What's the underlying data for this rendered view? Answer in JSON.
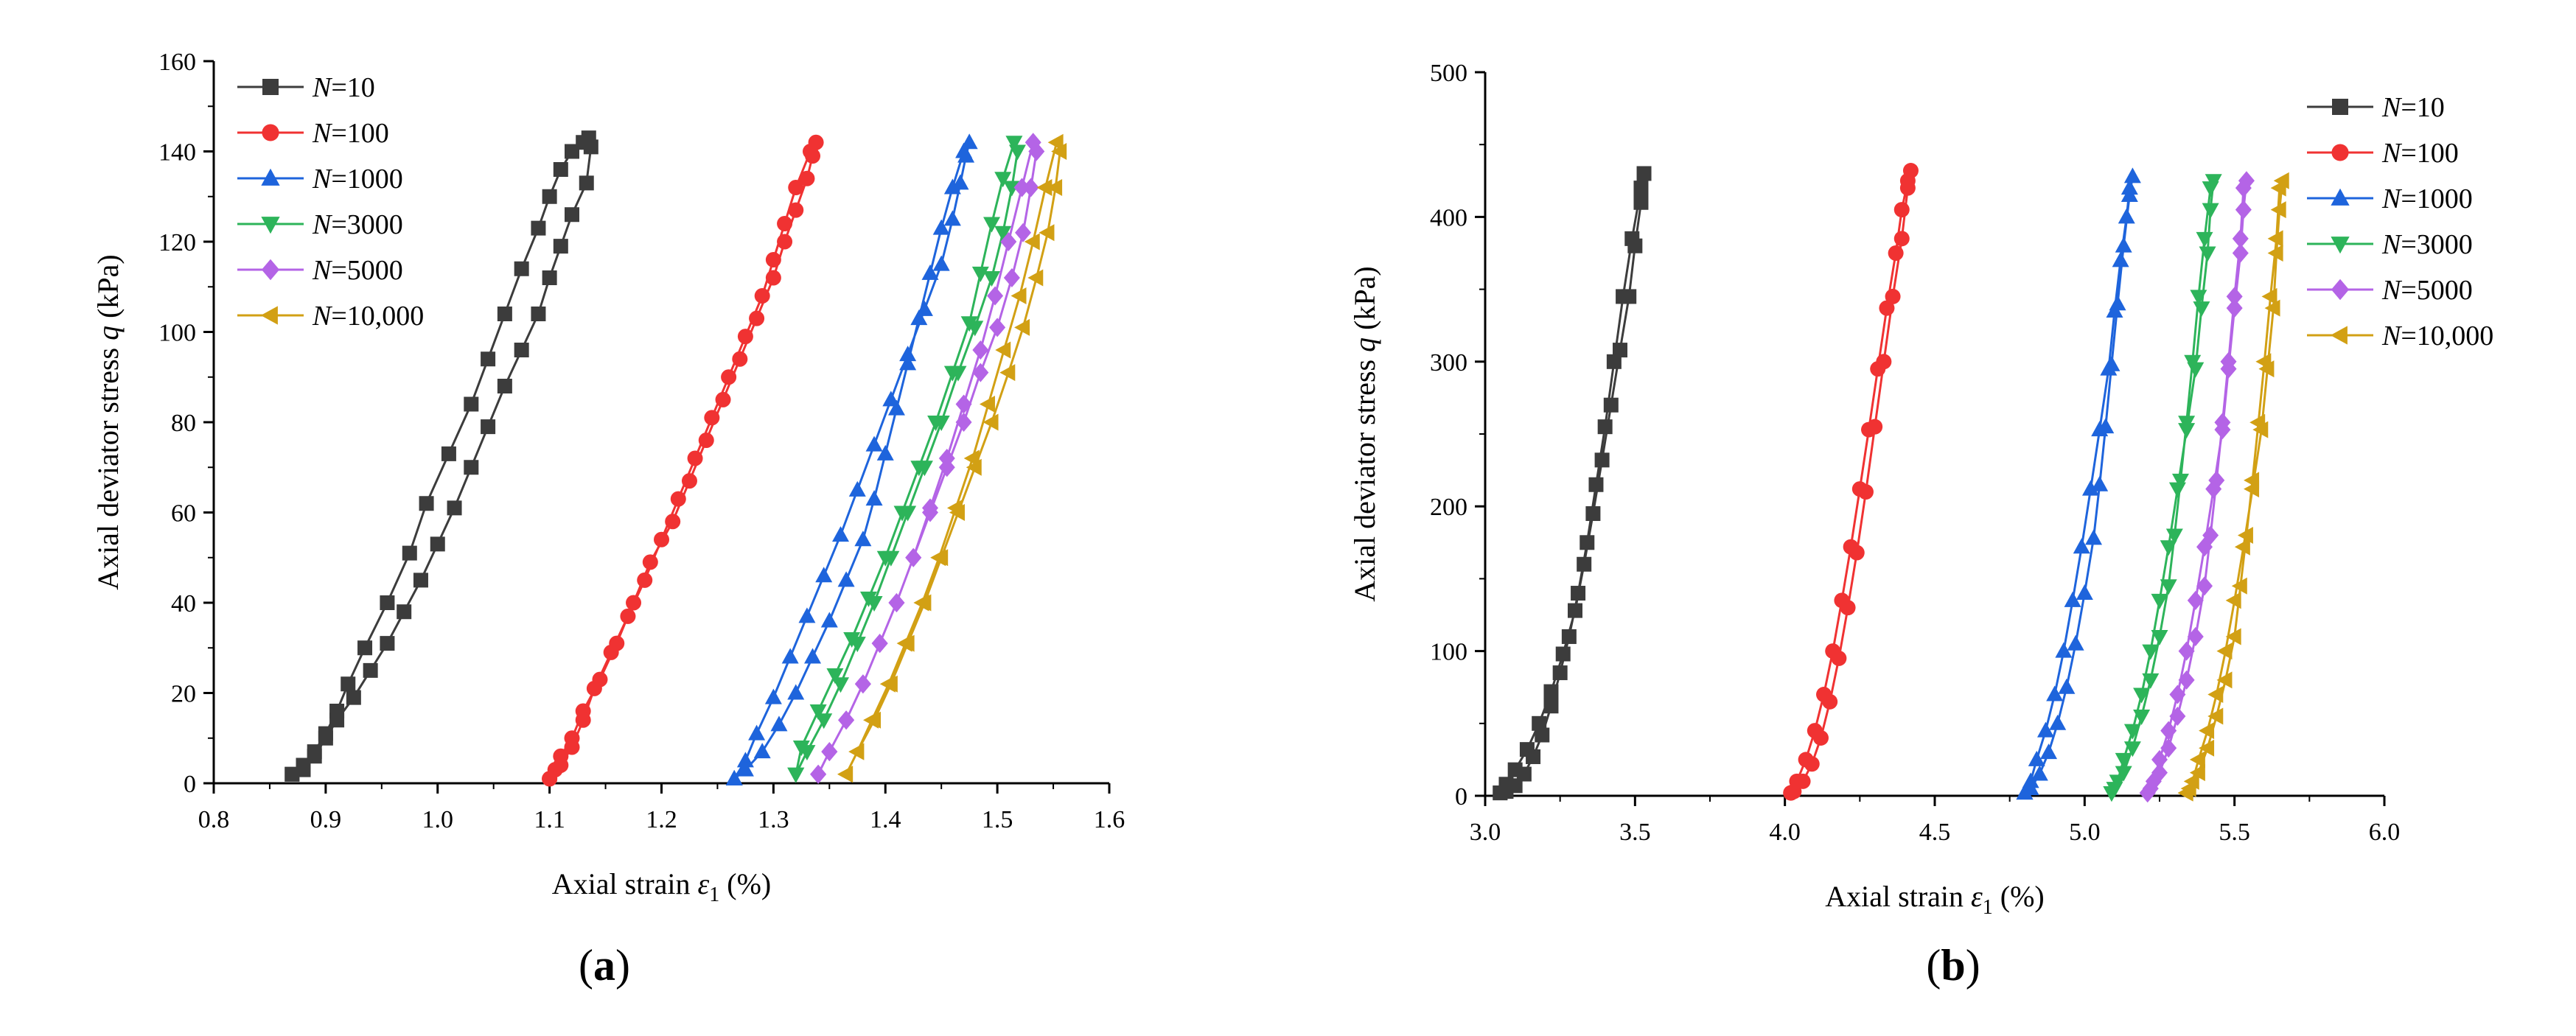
{
  "panels": [
    {
      "id": "a",
      "label": "a",
      "chart_data": {
        "type": "line",
        "xlabel_main": "Axial strain ",
        "xlabel_symbol": "ε",
        "xlabel_sub": "1",
        "xlabel_tail": " (%)",
        "ylabel_main": "Axial deviator stress ",
        "ylabel_symbol": "q",
        "ylabel_tail": " (kPa)",
        "xlim": [
          0.8,
          1.6
        ],
        "ylim": [
          0,
          160
        ],
        "xticks": [
          "0.8",
          "0.9",
          "1.0",
          "1.1",
          "1.2",
          "1.3",
          "1.4",
          "1.5",
          "1.6"
        ],
        "yticks": [
          "0",
          "20",
          "40",
          "60",
          "80",
          "100",
          "120",
          "140",
          "160"
        ],
        "legend_position": "top-left",
        "series": [
          {
            "name_prefix": "N",
            "name_value": "=10",
            "color": "#3c3c3c",
            "marker": "square",
            "x": [
              0.87,
              0.88,
              0.89,
              0.9,
              0.91,
              0.92,
              0.935,
              0.955,
              0.975,
              0.99,
              1.01,
              1.03,
              1.045,
              1.06,
              1.075,
              1.09,
              1.1,
              1.11,
              1.12,
              1.13,
              1.135,
              1.137,
              1.133,
              1.12,
              1.11,
              1.1,
              1.09,
              1.075,
              1.06,
              1.045,
              1.03,
              1.015,
              1.0,
              0.985,
              0.97,
              0.955,
              0.94,
              0.925,
              0.91,
              0.9,
              0.89,
              0.88,
              0.87
            ],
            "y": [
              2,
              4,
              7,
              11,
              16,
              22,
              30,
              40,
              51,
              62,
              73,
              84,
              94,
              104,
              114,
              123,
              130,
              136,
              140,
              142,
              143,
              141,
              133,
              126,
              119,
              112,
              104,
              96,
              88,
              79,
              70,
              61,
              53,
              45,
              38,
              31,
              25,
              19,
              14,
              10,
              6,
              3,
              2
            ]
          },
          {
            "name_prefix": "N",
            "name_value": "=100",
            "color": "#f03232",
            "marker": "circle",
            "x": [
              1.1,
              1.105,
              1.11,
              1.12,
              1.13,
              1.145,
              1.16,
              1.175,
              1.19,
              1.21,
              1.225,
              1.24,
              1.255,
              1.27,
              1.285,
              1.3,
              1.31,
              1.32,
              1.33,
              1.335,
              1.338,
              1.333,
              1.32,
              1.31,
              1.3,
              1.29,
              1.275,
              1.26,
              1.245,
              1.23,
              1.215,
              1.2,
              1.185,
              1.17,
              1.155,
              1.14,
              1.13,
              1.12,
              1.11,
              1.1
            ],
            "y": [
              1,
              3,
              6,
              10,
              16,
              23,
              31,
              40,
              49,
              58,
              67,
              76,
              85,
              94,
              103,
              112,
              120,
              127,
              134,
              139,
              142,
              140,
              132,
              124,
              116,
              108,
              99,
              90,
              81,
              72,
              63,
              54,
              45,
              37,
              29,
              21,
              14,
              8,
              4,
              1
            ]
          },
          {
            "name_prefix": "N",
            "name_value": "=1000",
            "color": "#1e64dc",
            "marker": "triangle-up",
            "x": [
              1.265,
              1.275,
              1.285,
              1.3,
              1.315,
              1.33,
              1.345,
              1.36,
              1.375,
              1.39,
              1.405,
              1.42,
              1.435,
              1.45,
              1.46,
              1.467,
              1.472,
              1.475,
              1.47,
              1.46,
              1.45,
              1.44,
              1.43,
              1.42,
              1.41,
              1.4,
              1.39,
              1.38,
              1.365,
              1.35,
              1.335,
              1.32,
              1.305,
              1.29,
              1.275,
              1.265
            ],
            "y": [
              1,
              5,
              11,
              19,
              28,
              37,
              46,
              55,
              65,
              75,
              85,
              95,
              105,
              115,
              125,
              133,
              139,
              142,
              140,
              132,
              123,
              113,
              103,
              93,
              83,
              73,
              63,
              54,
              45,
              36,
              28,
              20,
              13,
              7,
              3,
              1
            ]
          },
          {
            "name_prefix": "N",
            "name_value": "=3000",
            "color": "#2db45a",
            "marker": "triangle-down",
            "x": [
              1.32,
              1.33,
              1.345,
              1.36,
              1.375,
              1.39,
              1.405,
              1.42,
              1.435,
              1.45,
              1.465,
              1.48,
              1.495,
              1.505,
              1.513,
              1.518,
              1.515,
              1.505,
              1.495,
              1.485,
              1.475,
              1.46,
              1.445,
              1.43,
              1.415,
              1.4,
              1.385,
              1.37,
              1.355,
              1.34,
              1.325,
              1.32
            ],
            "y": [
              2,
              7,
              14,
              22,
              31,
              40,
              50,
              60,
              70,
              80,
              91,
              101,
              112,
              122,
              132,
              140,
              142,
              134,
              124,
              113,
              102,
              91,
              80,
              70,
              60,
              50,
              41,
              32,
              24,
              16,
              8,
              2
            ]
          },
          {
            "name_prefix": "N",
            "name_value": "=5000",
            "color": "#b464e6",
            "marker": "diamond",
            "x": [
              1.34,
              1.35,
              1.365,
              1.38,
              1.395,
              1.41,
              1.425,
              1.44,
              1.455,
              1.47,
              1.485,
              1.5,
              1.513,
              1.523,
              1.53,
              1.535,
              1.532,
              1.522,
              1.51,
              1.498,
              1.485,
              1.47,
              1.455,
              1.44,
              1.425,
              1.41,
              1.395,
              1.38,
              1.365,
              1.35,
              1.34
            ],
            "y": [
              2,
              7,
              14,
              22,
              31,
              40,
              50,
              60,
              70,
              80,
              91,
              101,
              112,
              122,
              132,
              140,
              142,
              132,
              120,
              108,
              96,
              84,
              72,
              61,
              50,
              40,
              31,
              22,
              14,
              7,
              2
            ]
          },
          {
            "name_prefix": "N",
            "name_value": "=10,000",
            "color": "#d2a014",
            "marker": "triangle-left",
            "x": [
              1.365,
              1.375,
              1.39,
              1.405,
              1.42,
              1.435,
              1.45,
              1.465,
              1.48,
              1.495,
              1.51,
              1.523,
              1.535,
              1.545,
              1.552,
              1.556,
              1.553,
              1.543,
              1.532,
              1.52,
              1.506,
              1.492,
              1.478,
              1.463,
              1.448,
              1.433,
              1.418,
              1.403,
              1.388,
              1.375,
              1.365
            ],
            "y": [
              2,
              7,
              14,
              22,
              31,
              40,
              50,
              60,
              70,
              80,
              91,
              101,
              112,
              122,
              132,
              140,
              142,
              132,
              120,
              108,
              96,
              84,
              72,
              61,
              50,
              40,
              31,
              22,
              14,
              7,
              2
            ]
          }
        ]
      }
    },
    {
      "id": "b",
      "label": "b",
      "chart_data": {
        "type": "line",
        "xlabel_main": "Axial strain ",
        "xlabel_symbol": "ε",
        "xlabel_sub": "1",
        "xlabel_tail": " (%)",
        "ylabel_main": "Axial deviator stress ",
        "ylabel_symbol": "q",
        "ylabel_tail": " (kPa)",
        "xlim": [
          3.0,
          6.0
        ],
        "ylim": [
          0,
          500
        ],
        "xticks": [
          "3.0",
          "3.5",
          "4.0",
          "4.5",
          "5.0",
          "5.5",
          "6.0"
        ],
        "yticks": [
          "0",
          "100",
          "200",
          "300",
          "400",
          "500"
        ],
        "legend_position": "top-right",
        "series": [
          {
            "name_prefix": "N",
            "name_value": "=10",
            "color": "#3c3c3c",
            "marker": "square",
            "x": [
              3.05,
              3.07,
              3.1,
              3.14,
              3.18,
              3.22,
              3.26,
              3.3,
              3.33,
              3.36,
              3.39,
              3.42,
              3.45,
              3.48,
              3.5,
              3.52,
              3.53,
              3.52,
              3.49,
              3.46,
              3.43,
              3.4,
              3.37,
              3.34,
              3.31,
              3.28,
              3.25,
              3.22,
              3.19,
              3.16,
              3.13,
              3.1,
              3.07,
              3.05
            ],
            "y": [
              2,
              8,
              18,
              32,
              50,
              72,
              98,
              128,
              160,
              195,
              232,
              270,
              308,
              345,
              380,
              410,
              430,
              420,
              385,
              345,
              300,
              255,
              215,
              175,
              140,
              110,
              85,
              62,
              42,
              27,
              15,
              7,
              3,
              2
            ]
          },
          {
            "name_prefix": "N",
            "name_value": "=100",
            "color": "#f03232",
            "marker": "circle",
            "x": [
              4.02,
              4.04,
              4.07,
              4.1,
              4.13,
              4.16,
              4.19,
              4.22,
              4.25,
              4.28,
              4.31,
              4.34,
              4.37,
              4.39,
              4.41,
              4.42,
              4.41,
              4.39,
              4.36,
              4.33,
              4.3,
              4.27,
              4.24,
              4.21,
              4.18,
              4.15,
              4.12,
              4.09,
              4.06,
              4.03,
              4.02
            ],
            "y": [
              2,
              10,
              25,
              45,
              70,
              100,
              135,
              172,
              212,
              253,
              295,
              337,
              375,
              405,
              425,
              432,
              420,
              385,
              345,
              300,
              255,
              210,
              168,
              130,
              95,
              65,
              40,
              22,
              10,
              3,
              2
            ]
          },
          {
            "name_prefix": "N",
            "name_value": "=1000",
            "color": "#1e64dc",
            "marker": "triangle-up",
            "x": [
              4.8,
              4.82,
              4.84,
              4.87,
              4.9,
              4.93,
              4.96,
              4.99,
              5.02,
              5.05,
              5.08,
              5.1,
              5.12,
              5.14,
              5.15,
              5.16,
              5.15,
              5.13,
              5.11,
              5.09,
              5.07,
              5.05,
              5.03,
              5.0,
              4.97,
              4.94,
              4.91,
              4.88,
              4.85,
              4.82,
              4.8
            ],
            "y": [
              2,
              10,
              25,
              45,
              70,
              100,
              135,
              172,
              212,
              253,
              295,
              335,
              370,
              400,
              420,
              428,
              415,
              380,
              340,
              298,
              255,
              215,
              178,
              140,
              105,
              75,
              50,
              30,
              15,
              5,
              2
            ]
          },
          {
            "name_prefix": "N",
            "name_value": "=3000",
            "color": "#2db45a",
            "marker": "triangle-down",
            "x": [
              5.09,
              5.11,
              5.13,
              5.16,
              5.19,
              5.22,
              5.25,
              5.28,
              5.31,
              5.34,
              5.37,
              5.39,
              5.41,
              5.42,
              5.43,
              5.42,
              5.4,
              5.38,
              5.36,
              5.34,
              5.32,
              5.3,
              5.28,
              5.25,
              5.22,
              5.19,
              5.16,
              5.13,
              5.1,
              5.09
            ],
            "y": [
              2,
              10,
              25,
              45,
              70,
              100,
              135,
              172,
              212,
              253,
              295,
              337,
              375,
              405,
              425,
              420,
              385,
              345,
              300,
              258,
              218,
              180,
              145,
              110,
              80,
              55,
              33,
              16,
              5,
              2
            ]
          },
          {
            "name_prefix": "N",
            "name_value": "=5000",
            "color": "#b464e6",
            "marker": "diamond",
            "x": [
              5.21,
              5.23,
              5.25,
              5.28,
              5.31,
              5.34,
              5.37,
              5.4,
              5.43,
              5.46,
              5.48,
              5.5,
              5.52,
              5.53,
              5.54,
              5.53,
              5.52,
              5.5,
              5.48,
              5.46,
              5.44,
              5.42,
              5.4,
              5.37,
              5.34,
              5.31,
              5.28,
              5.25,
              5.22,
              5.21
            ],
            "y": [
              2,
              10,
              25,
              45,
              70,
              100,
              135,
              172,
              212,
              253,
              295,
              337,
              375,
              405,
              425,
              420,
              385,
              345,
              300,
              258,
              218,
              180,
              145,
              110,
              80,
              55,
              33,
              16,
              5,
              2
            ]
          },
          {
            "name_prefix": "N",
            "name_value": "=10,000",
            "color": "#d2a014",
            "marker": "triangle-left",
            "x": [
              5.34,
              5.36,
              5.38,
              5.41,
              5.44,
              5.47,
              5.5,
              5.53,
              5.56,
              5.59,
              5.61,
              5.63,
              5.64,
              5.65,
              5.66,
              5.65,
              5.64,
              5.62,
              5.6,
              5.58,
              5.56,
              5.54,
              5.52,
              5.5,
              5.47,
              5.44,
              5.41,
              5.38,
              5.35,
              5.34
            ],
            "y": [
              2,
              10,
              25,
              45,
              70,
              100,
              135,
              172,
              212,
              253,
              295,
              337,
              375,
              405,
              425,
              420,
              385,
              345,
              300,
              258,
              218,
              180,
              145,
              110,
              80,
              55,
              33,
              16,
              5,
              2
            ]
          }
        ]
      }
    }
  ]
}
